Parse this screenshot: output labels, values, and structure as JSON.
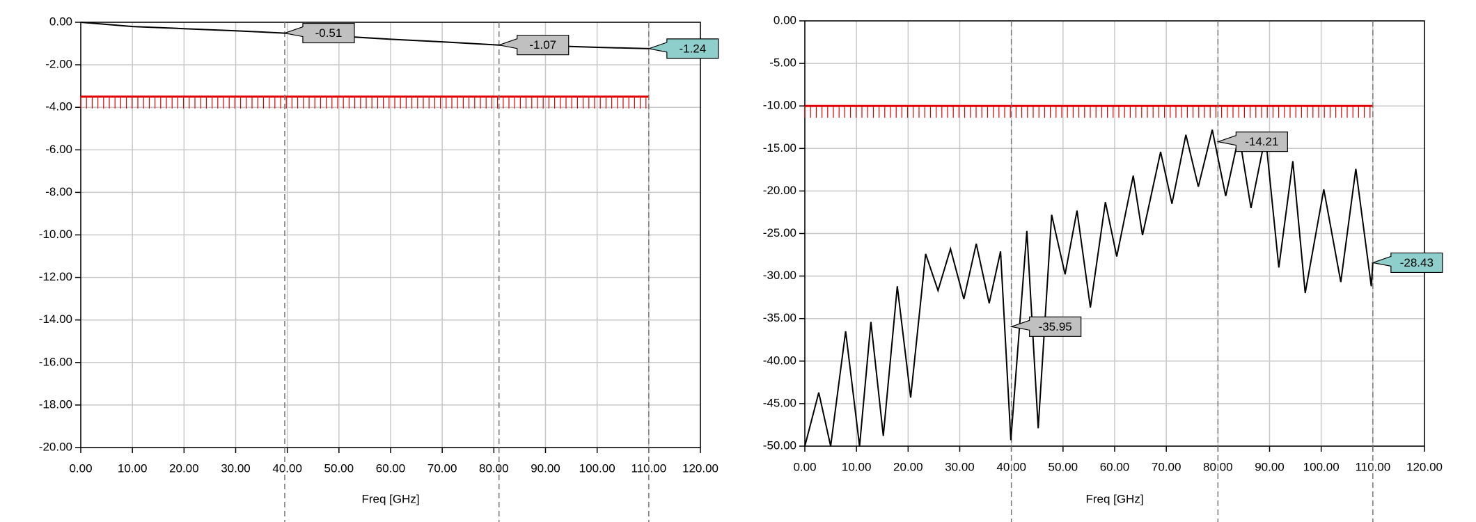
{
  "chart_data": [
    {
      "type": "line",
      "xlabel": "Freq [GHz]",
      "grid": true,
      "xlim": [
        0,
        120
      ],
      "xticks": [
        {
          "value": 0,
          "label": "0.00"
        },
        {
          "value": 10,
          "label": "10.00"
        },
        {
          "value": 20,
          "label": "20.00"
        },
        {
          "value": 30,
          "label": "30.00"
        },
        {
          "value": 40,
          "label": "40.00"
        },
        {
          "value": 50,
          "label": "50.00"
        },
        {
          "value": 60,
          "label": "60.00"
        },
        {
          "value": 70,
          "label": "70.00"
        },
        {
          "value": 80,
          "label": "80.00"
        },
        {
          "value": 90,
          "label": "90.00"
        },
        {
          "value": 100,
          "label": "100.00"
        },
        {
          "value": 110,
          "label": "110.00"
        },
        {
          "value": 120,
          "label": "120.00"
        }
      ],
      "ylim": [
        -20,
        0
      ],
      "yticks": [
        {
          "value": 0,
          "label": "0.00"
        },
        {
          "value": -2,
          "label": "-2.00"
        },
        {
          "value": -4,
          "label": "-4.00"
        },
        {
          "value": -6,
          "label": "-6.00"
        },
        {
          "value": -8,
          "label": "-8.00"
        },
        {
          "value": -10,
          "label": "-10.00"
        },
        {
          "value": -12,
          "label": "-12.00"
        },
        {
          "value": -14,
          "label": "-14.00"
        },
        {
          "value": -16,
          "label": "-16.00"
        },
        {
          "value": -18,
          "label": "-18.00"
        },
        {
          "value": -20,
          "label": "-20.00"
        }
      ],
      "series": [
        {
          "color": "#000000",
          "x": [
            0,
            10,
            20,
            30,
            39.5,
            50,
            60,
            70,
            81,
            90,
            100,
            110
          ],
          "values": [
            0,
            -0.2,
            -0.3,
            -0.4,
            -0.51,
            -0.65,
            -0.8,
            -0.92,
            -1.07,
            -1.1,
            -1.18,
            -1.24
          ]
        }
      ],
      "limit_line": {
        "x": [
          0,
          110
        ],
        "value": -3.5,
        "color": "#e00000"
      },
      "markers": {
        "x": [
          39.5,
          81,
          110
        ],
        "values": [
          -0.51,
          -1.07,
          -1.24
        ],
        "colors": [
          "#c0c0c0",
          "#c0c0c0",
          "#8ecfcb"
        ]
      }
    },
    {
      "type": "line",
      "xlabel": "Freq [GHz]",
      "grid": true,
      "xlim": [
        0,
        120
      ],
      "xticks": [
        {
          "value": 0,
          "label": "0.00"
        },
        {
          "value": 10,
          "label": "10.00"
        },
        {
          "value": 20,
          "label": "20.00"
        },
        {
          "value": 30,
          "label": "30.00"
        },
        {
          "value": 40,
          "label": "40.00"
        },
        {
          "value": 50,
          "label": "50.00"
        },
        {
          "value": 60,
          "label": "60.00"
        },
        {
          "value": 70,
          "label": "70.00"
        },
        {
          "value": 80,
          "label": "80.00"
        },
        {
          "value": 90,
          "label": "90.00"
        },
        {
          "value": 100,
          "label": "100.00"
        },
        {
          "value": 110,
          "label": "110.00"
        },
        {
          "value": 120,
          "label": "120.00"
        }
      ],
      "ylim": [
        -50,
        0
      ],
      "yticks": [
        {
          "value": 0,
          "label": "0.00"
        },
        {
          "value": -5,
          "label": "-5.00"
        },
        {
          "value": -10,
          "label": "-10.00"
        },
        {
          "value": -15,
          "label": "-15.00"
        },
        {
          "value": -20,
          "label": "-20.00"
        },
        {
          "value": -25,
          "label": "-25.00"
        },
        {
          "value": -30,
          "label": "-30.00"
        },
        {
          "value": -35,
          "label": "-35.00"
        },
        {
          "value": -40,
          "label": "-40.00"
        },
        {
          "value": -45,
          "label": "-45.00"
        },
        {
          "value": -50,
          "label": "-50.00"
        }
      ],
      "series": [
        {
          "color": "#000000",
          "x": [
            0,
            2.7,
            5,
            7.9,
            10.6,
            12.8,
            15.2,
            17.9,
            20.5,
            23.4,
            25.8,
            28.2,
            30.8,
            33.2,
            35.7,
            37.9,
            39.9,
            43,
            45.2,
            47.8,
            50.4,
            52.7,
            55.3,
            58.2,
            60.4,
            63.6,
            65.4,
            68.9,
            71.1,
            73.8,
            76.2,
            78.9,
            81.5,
            84.1,
            86.4,
            89.2,
            91.8,
            94.5,
            96.9,
            100.5,
            103.8,
            106.7,
            109.7,
            110
          ],
          "values": [
            -50,
            -43.7,
            -50,
            -36.5,
            -50,
            -35.4,
            -48.8,
            -31.2,
            -44.3,
            -27.4,
            -31.7,
            -26.8,
            -32.7,
            -26.2,
            -33.2,
            -27.1,
            -49.3,
            -24.7,
            -47.9,
            -22.8,
            -29.8,
            -22.3,
            -33.7,
            -21.3,
            -27.7,
            -18.2,
            -25.2,
            -15.4,
            -21.5,
            -13.4,
            -19.5,
            -12.8,
            -20.6,
            -13.4,
            -22,
            -13.5,
            -29,
            -16.5,
            -32,
            -19.8,
            -30.7,
            -17.4,
            -31.2,
            -28.43
          ]
        }
      ],
      "limit_line": {
        "x": [
          0,
          110
        ],
        "value": -10,
        "color": "#e00000"
      },
      "markers": {
        "x": [
          40,
          80,
          110
        ],
        "values": [
          -35.95,
          -14.21,
          -28.43
        ],
        "colors": [
          "#c0c0c0",
          "#c0c0c0",
          "#8ecfcb"
        ]
      }
    }
  ]
}
